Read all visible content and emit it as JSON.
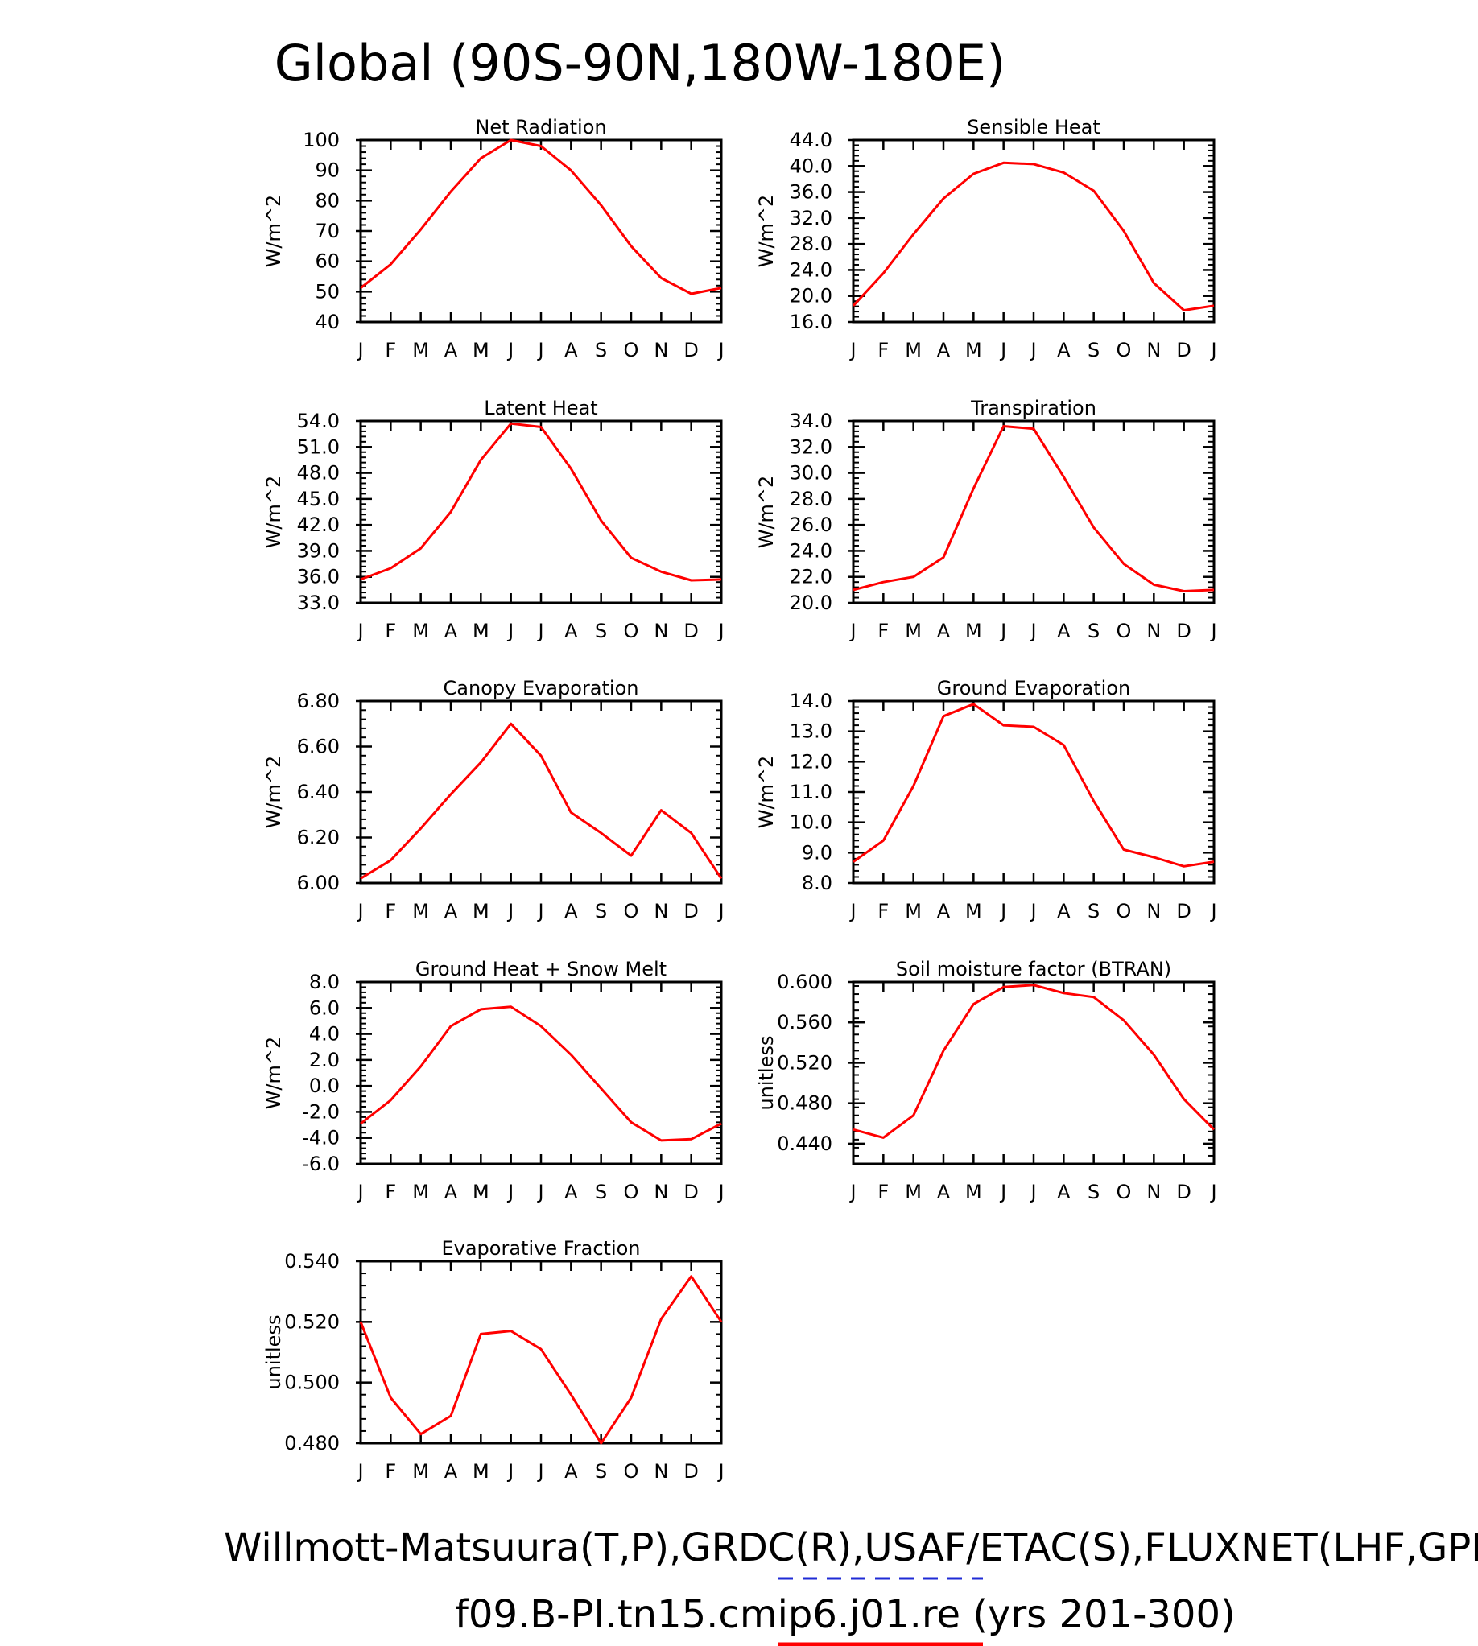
{
  "page_title": "Global (90S-90N,180W-180E)",
  "footer": {
    "line1": "Willmott-Matsuura(T,P),GRDC(R),USAF/ETAC(S),FLUXNET(LHF,GPP)",
    "line2": "f09.B-PI.tn15.cmip6.j01.re (yrs 201-300)",
    "line1_legend_color": "#1f2bd6",
    "line2_legend_color": "#ff0000"
  },
  "colors": {
    "series": "#ff0000",
    "axes": "#000000"
  },
  "chart_data": [
    {
      "type": "line",
      "title": "Net Radiation",
      "ylabel": "W/m^2",
      "xlabel": "",
      "x": [
        "J",
        "F",
        "M",
        "A",
        "M",
        "J",
        "J",
        "A",
        "S",
        "O",
        "N",
        "D",
        "J"
      ],
      "values": [
        51.2,
        59.0,
        70.5,
        83.0,
        94.0,
        100.0,
        98.0,
        90.0,
        78.5,
        65.0,
        54.5,
        49.3,
        51.2
      ],
      "ylim": [
        40,
        100
      ],
      "yticks": [
        "100",
        "90",
        "80",
        "70",
        "60",
        "50",
        "40"
      ],
      "ytick_values": [
        100,
        90,
        80,
        70,
        60,
        50,
        40
      ],
      "grid": false
    },
    {
      "type": "line",
      "title": "Sensible Heat",
      "ylabel": "W/m^2",
      "xlabel": "",
      "x": [
        "J",
        "F",
        "M",
        "A",
        "M",
        "J",
        "J",
        "A",
        "S",
        "O",
        "N",
        "D",
        "J"
      ],
      "values": [
        18.5,
        23.5,
        29.5,
        35.0,
        38.8,
        40.5,
        40.3,
        39.0,
        36.2,
        30.0,
        22.0,
        17.8,
        18.5
      ],
      "ylim": [
        16,
        44
      ],
      "yticks": [
        "44.0",
        "40.0",
        "36.0",
        "32.0",
        "28.0",
        "24.0",
        "20.0",
        "16.0"
      ],
      "ytick_values": [
        44,
        40,
        36,
        32,
        28,
        24,
        20,
        16
      ],
      "grid": false
    },
    {
      "type": "line",
      "title": "Latent Heat",
      "ylabel": "W/m^2",
      "xlabel": "",
      "x": [
        "J",
        "F",
        "M",
        "A",
        "M",
        "J",
        "J",
        "A",
        "S",
        "O",
        "N",
        "D",
        "J"
      ],
      "values": [
        35.7,
        37.0,
        39.3,
        43.5,
        49.5,
        53.7,
        53.3,
        48.5,
        42.5,
        38.2,
        36.6,
        35.6,
        35.7
      ],
      "ylim": [
        33,
        54
      ],
      "yticks": [
        "54.0",
        "51.0",
        "48.0",
        "45.0",
        "42.0",
        "39.0",
        "36.0",
        "33.0"
      ],
      "ytick_values": [
        54,
        51,
        48,
        45,
        42,
        39,
        36,
        33
      ],
      "grid": false
    },
    {
      "type": "line",
      "title": "Transpiration",
      "ylabel": "W/m^2",
      "xlabel": "",
      "x": [
        "J",
        "F",
        "M",
        "A",
        "M",
        "J",
        "J",
        "A",
        "S",
        "O",
        "N",
        "D",
        "J"
      ],
      "values": [
        21.0,
        21.6,
        22.0,
        23.5,
        28.8,
        33.6,
        33.4,
        29.7,
        25.8,
        23.0,
        21.4,
        20.9,
        21.0
      ],
      "ylim": [
        20,
        34
      ],
      "yticks": [
        "34.0",
        "32.0",
        "30.0",
        "28.0",
        "26.0",
        "24.0",
        "22.0",
        "20.0"
      ],
      "ytick_values": [
        34,
        32,
        30,
        28,
        26,
        24,
        22,
        20
      ],
      "grid": false
    },
    {
      "type": "line",
      "title": "Canopy Evaporation",
      "ylabel": "W/m^2",
      "xlabel": "",
      "x": [
        "J",
        "F",
        "M",
        "A",
        "M",
        "J",
        "J",
        "A",
        "S",
        "O",
        "N",
        "D",
        "J"
      ],
      "values": [
        6.02,
        6.1,
        6.24,
        6.39,
        6.53,
        6.7,
        6.56,
        6.31,
        6.22,
        6.12,
        6.32,
        6.22,
        6.02
      ],
      "ylim": [
        6.0,
        6.8
      ],
      "yticks": [
        "6.80",
        "6.60",
        "6.40",
        "6.20",
        "6.00"
      ],
      "ytick_values": [
        6.8,
        6.6,
        6.4,
        6.2,
        6.0
      ],
      "grid": false
    },
    {
      "type": "line",
      "title": "Ground Evaporation",
      "ylabel": "W/m^2",
      "xlabel": "",
      "x": [
        "J",
        "F",
        "M",
        "A",
        "M",
        "J",
        "J",
        "A",
        "S",
        "O",
        "N",
        "D",
        "J"
      ],
      "values": [
        8.7,
        9.4,
        11.2,
        13.5,
        13.9,
        13.2,
        13.15,
        12.55,
        10.7,
        9.1,
        8.85,
        8.55,
        8.7
      ],
      "ylim": [
        8,
        14
      ],
      "yticks": [
        "14.0",
        "13.0",
        "12.0",
        "11.0",
        "10.0",
        "9.0",
        "8.0"
      ],
      "ytick_values": [
        14,
        13,
        12,
        11,
        10,
        9,
        8
      ],
      "grid": false
    },
    {
      "type": "line",
      "title": "Ground Heat + Snow Melt",
      "ylabel": "W/m^2",
      "xlabel": "",
      "x": [
        "J",
        "F",
        "M",
        "A",
        "M",
        "J",
        "J",
        "A",
        "S",
        "O",
        "N",
        "D",
        "J"
      ],
      "values": [
        -2.9,
        -1.1,
        1.5,
        4.6,
        5.9,
        6.1,
        4.6,
        2.4,
        -0.2,
        -2.8,
        -4.2,
        -4.1,
        -2.9
      ],
      "ylim": [
        -6,
        8
      ],
      "yticks": [
        "8.0",
        "6.0",
        "4.0",
        "2.0",
        "0.0",
        "-2.0",
        "-4.0",
        "-6.0"
      ],
      "ytick_values": [
        8,
        6,
        4,
        2,
        0,
        -2,
        -4,
        -6
      ],
      "grid": false
    },
    {
      "type": "line",
      "title": "Soil moisture factor (BTRAN)",
      "ylabel": "unitless",
      "xlabel": "",
      "x": [
        "J",
        "F",
        "M",
        "A",
        "M",
        "J",
        "J",
        "A",
        "S",
        "O",
        "N",
        "D",
        "J"
      ],
      "values": [
        0.454,
        0.446,
        0.468,
        0.532,
        0.578,
        0.595,
        0.597,
        0.589,
        0.585,
        0.562,
        0.528,
        0.484,
        0.454
      ],
      "ylim": [
        0.42,
        0.6
      ],
      "yticks": [
        "0.600",
        "0.560",
        "0.520",
        "0.480",
        "0.440"
      ],
      "ytick_values": [
        0.6,
        0.56,
        0.52,
        0.48,
        0.44
      ],
      "grid": false
    },
    {
      "type": "line",
      "title": "Evaporative Fraction",
      "ylabel": "unitless",
      "xlabel": "",
      "x": [
        "J",
        "F",
        "M",
        "A",
        "M",
        "J",
        "J",
        "A",
        "S",
        "O",
        "N",
        "D",
        "J"
      ],
      "values": [
        0.52,
        0.495,
        0.483,
        0.489,
        0.516,
        0.517,
        0.511,
        0.496,
        0.48,
        0.495,
        0.521,
        0.535,
        0.52
      ],
      "ylim": [
        0.48,
        0.54
      ],
      "yticks": [
        "0.540",
        "0.520",
        "0.500",
        "0.480"
      ],
      "ytick_values": [
        0.54,
        0.52,
        0.5,
        0.48
      ],
      "grid": false
    }
  ]
}
